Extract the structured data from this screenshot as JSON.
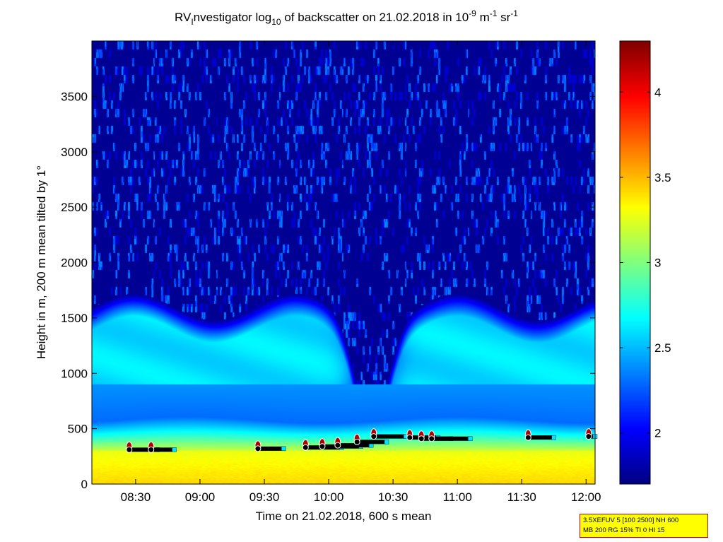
{
  "chart_data": {
    "type": "heatmap",
    "title": {
      "prefix": "RV",
      "prefix_sub": "I",
      "part2": "nvestigator log",
      "part2_sub": "10",
      "part3": " of backscatter on 21.02.2018 in 10",
      "exp1": "-9",
      "part4": " m",
      "exp2": "-1",
      "part5": " sr",
      "exp3": "-1"
    },
    "xlabel": "Time on 21.02.2018, 600 s mean",
    "ylabel": "Height in m, 200 m mean tilted by 1°",
    "x_range_hours": [
      8.16,
      12.07
    ],
    "x_ticks": [
      {
        "value": 8.5,
        "label": "08:30"
      },
      {
        "value": 9.0,
        "label": "09:00"
      },
      {
        "value": 9.5,
        "label": "09:30"
      },
      {
        "value": 10.0,
        "label": "10:00"
      },
      {
        "value": 10.5,
        "label": "10:30"
      },
      {
        "value": 11.0,
        "label": "11:00"
      },
      {
        "value": 11.5,
        "label": "11:30"
      },
      {
        "value": 12.0,
        "label": "12:00"
      }
    ],
    "y_range": [
      0,
      4000
    ],
    "y_ticks": [
      {
        "value": 0,
        "label": "0"
      },
      {
        "value": 500,
        "label": "500"
      },
      {
        "value": 1000,
        "label": "1000"
      },
      {
        "value": 1500,
        "label": "1500"
      },
      {
        "value": 2000,
        "label": "2000"
      },
      {
        "value": 2500,
        "label": "2500"
      },
      {
        "value": 3000,
        "label": "3000"
      },
      {
        "value": 3500,
        "label": "3500"
      }
    ],
    "colorbar": {
      "range": [
        1.7,
        4.3
      ],
      "colormap": "jet",
      "ticks": [
        {
          "value": 2,
          "label": "2"
        },
        {
          "value": 2.5,
          "label": "2.5"
        },
        {
          "value": 3,
          "label": "3"
        },
        {
          "value": 3.5,
          "label": "3.5"
        },
        {
          "value": 4,
          "label": "4"
        }
      ]
    },
    "field": {
      "surface_layer_top_m": 300,
      "mixed_layer_top_m": 580,
      "residual_layer_top_m": 1600,
      "surface_value": 3.4,
      "boundary_value": 3.2,
      "mixed_value": 2.3,
      "residual_value": 2.6,
      "free_atmosphere_value": 1.75,
      "dip_center_hours": 10.33
    },
    "cloud_base_markers": [
      {
        "start": 8.45,
        "end": 8.67,
        "height": 310
      },
      {
        "start": 8.62,
        "end": 8.8,
        "height": 310
      },
      {
        "start": 9.45,
        "end": 9.65,
        "height": 320
      },
      {
        "start": 9.82,
        "end": 10.1,
        "height": 330
      },
      {
        "start": 9.95,
        "end": 10.25,
        "height": 340
      },
      {
        "start": 10.07,
        "end": 10.33,
        "height": 350
      },
      {
        "start": 10.22,
        "end": 10.45,
        "height": 380
      },
      {
        "start": 10.35,
        "end": 10.6,
        "height": 430
      },
      {
        "start": 10.63,
        "end": 10.85,
        "height": 420
      },
      {
        "start": 10.72,
        "end": 10.95,
        "height": 410
      },
      {
        "start": 10.8,
        "end": 11.1,
        "height": 410
      },
      {
        "start": 11.55,
        "end": 11.75,
        "height": 420
      },
      {
        "start": 12.02,
        "end": 12.07,
        "height": 430
      }
    ]
  },
  "infobox": {
    "line1": "3.5XEFUV 5 [100 2500] NH 600",
    "line2": "MB 200 RG 15% TI 0 HI 15"
  }
}
